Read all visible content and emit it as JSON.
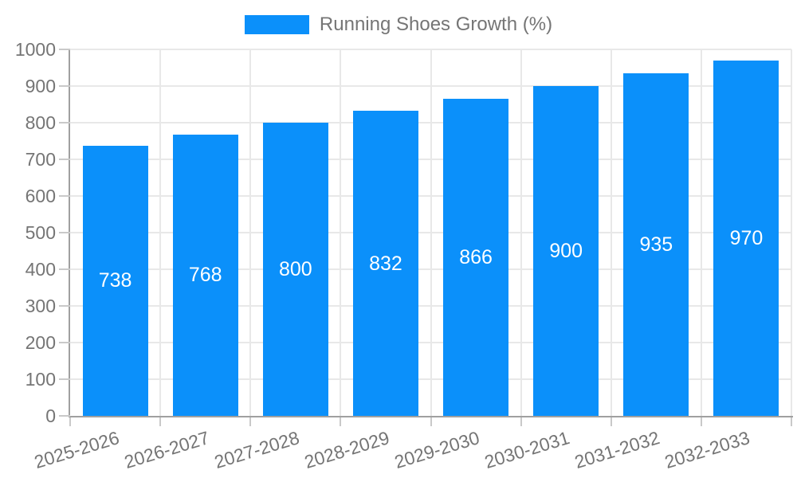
{
  "legend": {
    "label": "Running Shoes Growth (%)"
  },
  "chart_data": {
    "type": "bar",
    "title": "Running Shoes Growth (%)",
    "categories": [
      "2025-2026",
      "2026-2027",
      "2027-2028",
      "2028-2029",
      "2029-2030",
      "2030-2031",
      "2031-2032",
      "2032-2033"
    ],
    "series": [
      {
        "name": "Running Shoes Growth (%)",
        "values": [
          738,
          768,
          800,
          832,
          866,
          900,
          935,
          970
        ]
      }
    ],
    "xlabel": "",
    "ylabel": "",
    "ylim": [
      0,
      1000
    ],
    "ytick_step": 100,
    "yticks": [
      0,
      100,
      200,
      300,
      400,
      500,
      600,
      700,
      800,
      900,
      1000
    ],
    "grid": true,
    "legend_position": "top-center",
    "data_labels": "inside-center",
    "x_label_rotation_deg": -17
  },
  "colors": {
    "background": "#ffffff",
    "bar": "#0b90fa",
    "grid_line": "#e8e8e8",
    "axis_line": "#a0a0a0",
    "tick_mark": "#c9c9c9",
    "tick_label": "#757575",
    "legend_text": "#757575",
    "data_label": "#ffffff"
  }
}
